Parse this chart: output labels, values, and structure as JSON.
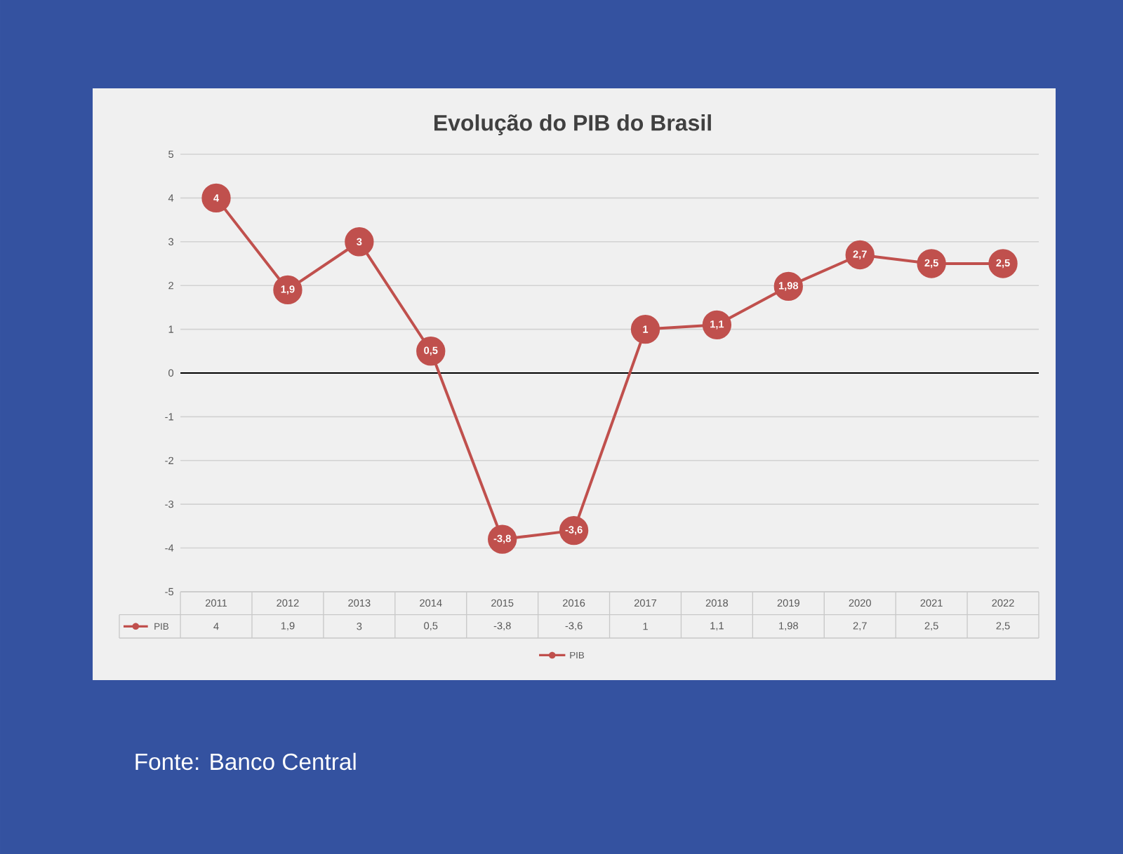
{
  "chart_data": {
    "type": "line",
    "title": "Evolução do PIB do Brasil",
    "categories": [
      "2011",
      "2012",
      "2013",
      "2014",
      "2015",
      "2016",
      "2017",
      "2018",
      "2019",
      "2020",
      "2021",
      "2022"
    ],
    "series": [
      {
        "name": "PIB",
        "color": "#c0504d",
        "values": [
          4,
          1.9,
          3,
          0.5,
          -3.8,
          -3.6,
          1,
          1.1,
          1.98,
          2.7,
          2.5,
          2.5
        ],
        "value_labels": [
          "4",
          "1,9",
          "3",
          "0,5",
          "-3,8",
          "-3,6",
          "1",
          "1,1",
          "1,98",
          "2,7",
          "2,5",
          "2,5"
        ]
      }
    ],
    "ylim": [
      -5,
      5
    ],
    "yticks": [
      -5,
      -4,
      -3,
      -2,
      -1,
      0,
      1,
      2,
      3,
      4,
      5
    ],
    "grid": "y",
    "legend": "bottom",
    "marker": "circle",
    "line_style": "solid",
    "annotations": [
      "Fonte: Banco Central"
    ]
  }
}
